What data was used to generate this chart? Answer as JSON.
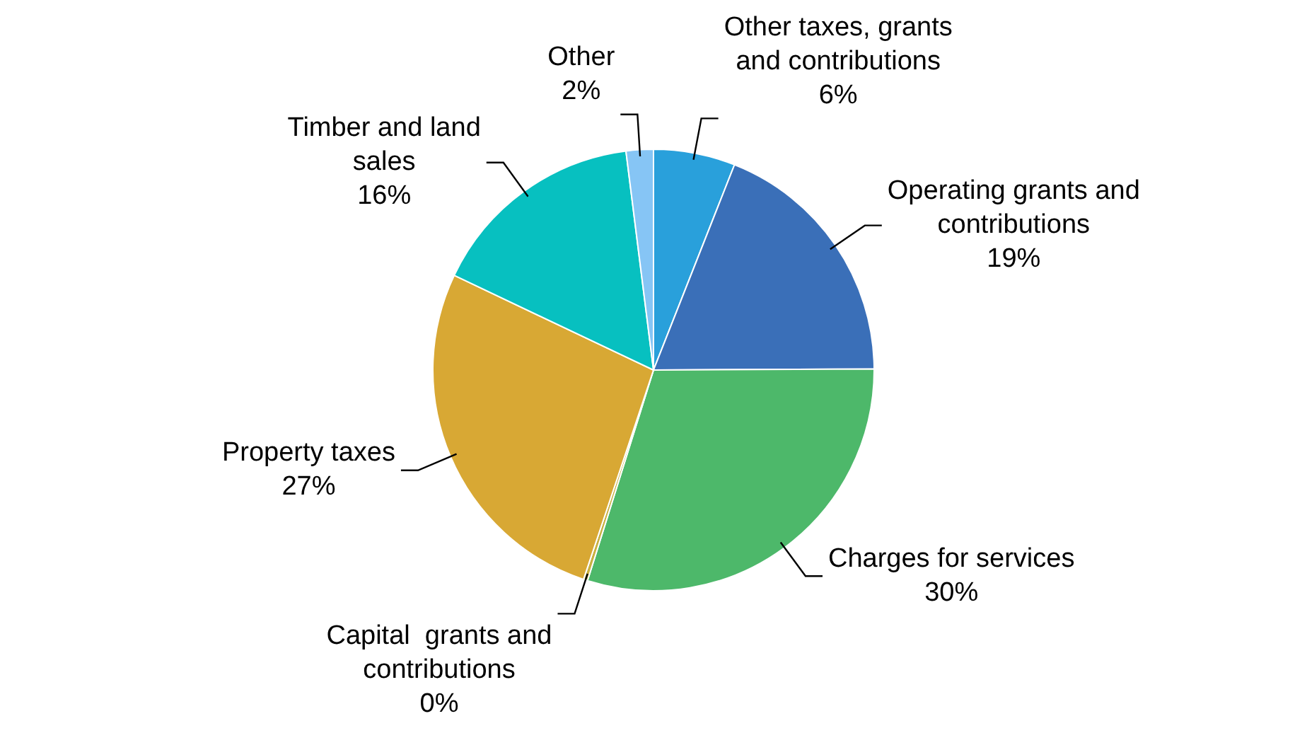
{
  "chart_data": {
    "type": "pie",
    "categories": [
      "Other taxes, grants and contributions",
      "Operating grants and contributions",
      "Charges for services",
      "Capital  grants and contributions",
      "Property taxes",
      "Timber and land sales",
      "Other"
    ],
    "values": [
      6,
      19,
      30,
      0.3,
      27,
      16,
      2
    ],
    "value_labels": [
      "6%",
      "19%",
      "30%",
      "0%",
      "27%",
      "16%",
      "2%"
    ],
    "colors": [
      "#29a0db",
      "#3a6fb8",
      "#4db86a",
      "#c8b040",
      "#d8a834",
      "#07c0c0",
      "#86c5f5"
    ],
    "legend": false
  }
}
